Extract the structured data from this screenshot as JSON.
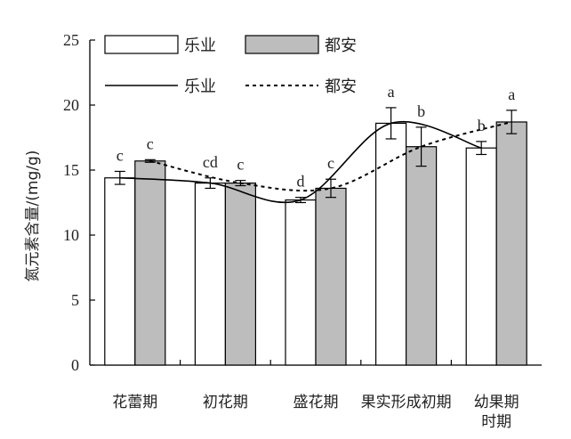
{
  "chart_data": {
    "type": "bar",
    "ylabel": "氮元素含量/(mg/g)",
    "ylim": [
      0,
      25
    ],
    "yticks": [
      0,
      5,
      10,
      15,
      20,
      25
    ],
    "categories": [
      [
        "花蕾期"
      ],
      [
        "初花期"
      ],
      [
        "盛花期"
      ],
      [
        "果实形成初期"
      ],
      [
        "幼果期",
        "时期"
      ]
    ],
    "series": [
      {
        "name": "乐业",
        "color": "#ffffff",
        "values": [
          14.4,
          14.0,
          12.7,
          18.6,
          16.7
        ],
        "errors": [
          0.5,
          0.4,
          0.2,
          1.2,
          0.5
        ],
        "sig": [
          "c",
          "cd",
          "d",
          "a",
          "b"
        ]
      },
      {
        "name": "都安",
        "color": "#bdbdbd",
        "values": [
          15.7,
          14.0,
          13.6,
          16.8,
          18.7
        ],
        "errors": [
          0.1,
          0.2,
          0.7,
          1.5,
          0.9
        ],
        "sig": [
          "c",
          "c",
          "c",
          "b",
          "a"
        ]
      }
    ],
    "trend_lines": [
      {
        "name": "乐业",
        "style": "solid"
      },
      {
        "name": "都安",
        "style": "dashed"
      }
    ],
    "legend_position": "top-left"
  }
}
